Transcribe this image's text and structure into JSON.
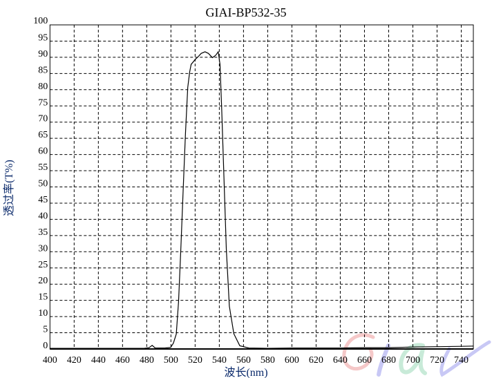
{
  "chart_data": {
    "type": "line",
    "title": "GIAI-BP532-35",
    "xlabel": "波长(nm)",
    "ylabel": "透过率(T%)",
    "xlim": [
      400,
      750
    ],
    "ylim": [
      0,
      100
    ],
    "xticks": [
      400,
      420,
      440,
      460,
      480,
      500,
      520,
      540,
      560,
      580,
      600,
      620,
      640,
      660,
      680,
      700,
      720,
      740
    ],
    "yticks": [
      0,
      5,
      10,
      15,
      20,
      25,
      30,
      35,
      40,
      45,
      50,
      55,
      60,
      65,
      70,
      75,
      80,
      85,
      90,
      95,
      100
    ],
    "grid": true,
    "series": [
      {
        "color": "#000000",
        "x": [
          400,
          420,
          440,
          460,
          478,
          482,
          484.5,
          487,
          495,
          499.8,
          502,
          504.4,
          506.3,
          508.2,
          510.1,
          512,
          513.9,
          515.5,
          516.7,
          520,
          522.8,
          525,
          528.2,
          531,
          534.3,
          537,
          539.1,
          540.6,
          542,
          543.9,
          545.8,
          548.3,
          552,
          556.9,
          564.4,
          580,
          600,
          620,
          640,
          660,
          680,
          700,
          720,
          740,
          750
        ],
        "y": [
          0.2,
          0.2,
          0.2,
          0.2,
          0.2,
          0.4,
          1.1,
          0.3,
          0.3,
          0.5,
          1.8,
          4.6,
          14.6,
          30.9,
          48.7,
          66.5,
          80.7,
          85.5,
          87.8,
          89.3,
          90.3,
          91.2,
          91.7,
          91.2,
          89.9,
          90.6,
          91.7,
          87.8,
          73.6,
          52.2,
          30.9,
          13.2,
          4.7,
          1.0,
          0.3,
          0.2,
          0.3,
          0.3,
          0.3,
          0.4,
          0.4,
          0.6,
          0.7,
          0.8,
          0.9
        ]
      }
    ]
  },
  "watermark": "Giai",
  "colors": {
    "watermark_blue": "#c8c8f5",
    "watermark_green": "#c8ead8",
    "watermark_red": "#f5c8c8"
  }
}
